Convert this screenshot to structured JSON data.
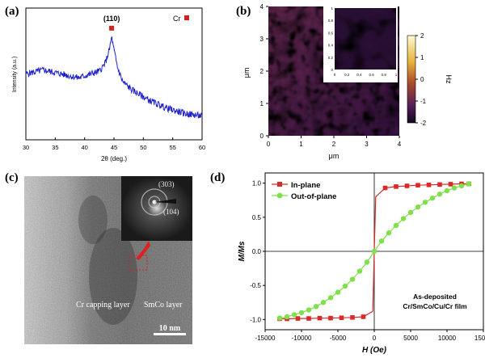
{
  "panel_labels": {
    "a": "(a)",
    "b": "(b)",
    "c": "(c)",
    "d": "(d)"
  },
  "colors": {
    "xrd_line": "#1e22c8",
    "marker_red": "#d02020",
    "inplane": "#d92a2a",
    "outofplane": "#7ee04a"
  },
  "chart_data": [
    {
      "type": "line",
      "title": "",
      "xlabel": "2θ (deg.)",
      "ylabel": "Intensity (a.u.)",
      "xlim": [
        30,
        60
      ],
      "xticks": [
        30,
        35,
        40,
        45,
        50,
        55,
        60
      ],
      "legend": "Cr",
      "annotation": "(110)",
      "peak": {
        "x": 44.6,
        "label": "(110)"
      },
      "series": [
        {
          "name": "XRD",
          "x": [
            30,
            33,
            36,
            39,
            41,
            42.5,
            43.5,
            44.2,
            44.6,
            45.0,
            45.6,
            46.5,
            48,
            51,
            54,
            57,
            60
          ],
          "values": [
            0.5,
            0.53,
            0.5,
            0.47,
            0.5,
            0.52,
            0.58,
            0.68,
            0.78,
            0.68,
            0.55,
            0.44,
            0.38,
            0.3,
            0.24,
            0.2,
            0.18
          ]
        }
      ]
    },
    {
      "type": "heatmap",
      "xlabel": "μm",
      "ylabel": "μm",
      "xticks": [
        0,
        1,
        2,
        3,
        4
      ],
      "yticks": [
        0,
        1,
        2,
        3,
        4
      ],
      "colorbar_label": "Hz",
      "colorbar_ticks": [
        2,
        1,
        0,
        -1,
        -2
      ],
      "inset_xticks": [
        "0",
        "0.2",
        "0.4",
        "0.6",
        "0.8",
        "1"
      ],
      "inset_yticks": [
        "0",
        "0.2",
        "0.4",
        "0.6",
        "0.8",
        "1"
      ]
    },
    {
      "type": "line",
      "xlabel": "H (Oe)",
      "ylabel": "M/Ms",
      "xlim": [
        -15000,
        15000
      ],
      "ylim": [
        -1.15,
        1.15
      ],
      "xticks": [
        -15000,
        -10000,
        -5000,
        0,
        5000,
        10000,
        15000
      ],
      "yticks": [
        -1.0,
        -0.5,
        0.0,
        0.5,
        1.0
      ],
      "legend_placement": "top-left",
      "annotation": [
        "As-deposited",
        "Cr/SmCo/Cu/Cr film"
      ],
      "series": [
        {
          "name": "In-plane",
          "x": [
            -13000,
            -12000,
            -10500,
            -9000,
            -7500,
            -6000,
            -4500,
            -3000,
            -1500,
            -200,
            0,
            200,
            1500,
            3000,
            4500,
            6000,
            7500,
            9000,
            10500,
            12000,
            13000
          ],
          "values": [
            -0.99,
            -0.99,
            -0.985,
            -0.985,
            -0.98,
            -0.98,
            -0.975,
            -0.97,
            -0.96,
            -0.88,
            0.0,
            0.8,
            0.93,
            0.95,
            0.96,
            0.97,
            0.975,
            0.98,
            0.985,
            0.99,
            0.99
          ]
        },
        {
          "name": "Out-of-plane",
          "x": [
            -13000,
            -12000,
            -11000,
            -10000,
            -9000,
            -8000,
            -7000,
            -6000,
            -5000,
            -4000,
            -3000,
            -2000,
            -1000,
            0,
            1000,
            2000,
            3000,
            4000,
            5000,
            6000,
            7000,
            8000,
            9000,
            10000,
            11000,
            12000,
            13000
          ],
          "values": [
            -0.98,
            -0.96,
            -0.93,
            -0.9,
            -0.86,
            -0.81,
            -0.75,
            -0.68,
            -0.6,
            -0.51,
            -0.41,
            -0.29,
            -0.16,
            0.0,
            0.15,
            0.27,
            0.38,
            0.48,
            0.57,
            0.65,
            0.72,
            0.78,
            0.84,
            0.89,
            0.93,
            0.96,
            0.99
          ]
        }
      ]
    }
  ],
  "tem": {
    "ring_labels": [
      "(303)",
      "(104)"
    ],
    "layer_labels": [
      "Cr capping layer",
      "SmCo layer"
    ],
    "scale_bar": "10 nm"
  }
}
